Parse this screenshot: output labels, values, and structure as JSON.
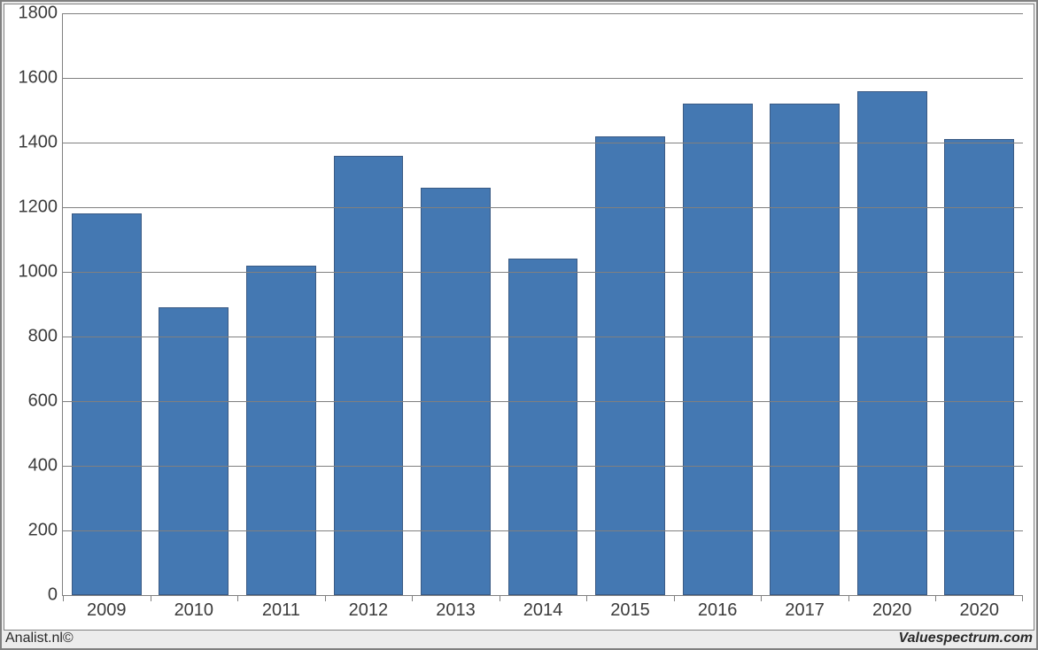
{
  "chart": {
    "type": "bar",
    "background_color": "#ffffff",
    "outer_background": "#ececec",
    "border_color": "#808080",
    "grid_color": "#808080",
    "bar_color": "#4478b2",
    "bar_border_color": "#3a5a84",
    "bar_width_pct": 80,
    "ylim": [
      0,
      1800
    ],
    "y_ticks": [
      0,
      200,
      400,
      600,
      800,
      1000,
      1200,
      1400,
      1600,
      1800
    ],
    "y_label_fontsize": 20,
    "x_label_fontsize": 20,
    "label_color": "#3b3b3b",
    "categories": [
      "2009",
      "2010",
      "2011",
      "2012",
      "2013",
      "2014",
      "2015",
      "2016",
      "2017",
      "2020",
      "2020"
    ],
    "values": [
      1180,
      890,
      1020,
      1360,
      1260,
      1040,
      1420,
      1520,
      1520,
      1560,
      1410
    ]
  },
  "footer": {
    "left": "Analist.nl©",
    "right": "Valuespectrum.com"
  }
}
